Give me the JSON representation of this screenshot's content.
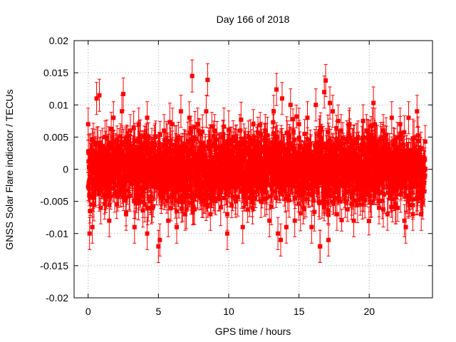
{
  "chart_data": {
    "type": "scatter",
    "title": "Day 166 of 2018",
    "xlabel": "GPS time / hours",
    "ylabel": "GNSS Solar Flare indicator / TECUs",
    "xlim": [
      -1,
      24.5
    ],
    "ylim": [
      -0.02,
      0.02
    ],
    "xticks": [
      0,
      5,
      10,
      15,
      20
    ],
    "xtick_labels": [
      "0",
      "5",
      "10",
      "15",
      "20"
    ],
    "yticks": [
      -0.02,
      -0.015,
      -0.01,
      -0.005,
      0,
      0.005,
      0.01,
      0.015,
      0.02
    ],
    "ytick_labels": [
      "-0.02",
      "-0.015",
      "-0.01",
      "-0.005",
      "0",
      "0.005",
      "0.01",
      "0.015",
      "0.02"
    ],
    "grid": true,
    "series_color": "#ff0000",
    "series": [
      {
        "name": "solar flare indicator",
        "x": [
          0.0,
          0.3,
          0.6,
          0.9,
          1.2,
          1.5,
          1.8,
          2.1,
          2.4,
          2.7,
          3.0,
          3.3,
          3.6,
          3.9,
          4.2,
          4.5,
          4.8,
          5.1,
          5.4,
          5.7,
          6.0,
          6.3,
          6.6,
          6.9,
          7.2,
          7.5,
          7.8,
          8.1,
          8.4,
          8.7,
          9.0,
          9.3,
          9.6,
          9.9,
          10.2,
          10.5,
          10.8,
          11.1,
          11.4,
          11.7,
          12.0,
          12.3,
          12.6,
          12.9,
          13.2,
          13.5,
          13.8,
          14.1,
          14.4,
          14.7,
          15.0,
          15.3,
          15.6,
          15.9,
          16.2,
          16.5,
          16.8,
          17.1,
          17.4,
          17.7,
          18.0,
          18.3,
          18.6,
          18.9,
          19.2,
          19.5,
          19.8,
          20.1,
          20.4,
          20.7,
          21.0,
          21.3,
          21.6,
          21.9,
          22.2,
          22.5,
          22.8,
          23.1,
          23.4,
          23.7,
          0.8,
          2.5,
          7.4,
          8.5,
          13.4,
          16.9,
          17.2,
          20.3,
          5.0,
          9.9,
          13.7,
          16.5,
          0.1,
          4.2,
          11.0,
          22.6
        ],
        "y": [
          0.007,
          -0.009,
          0.011,
          -0.006,
          0.005,
          -0.008,
          0.008,
          -0.004,
          0.009,
          -0.007,
          0.006,
          -0.009,
          0.007,
          -0.005,
          0.008,
          -0.006,
          0.005,
          -0.011,
          0.006,
          -0.008,
          0.007,
          -0.009,
          0.009,
          -0.007,
          0.008,
          -0.006,
          0.007,
          -0.005,
          0.009,
          -0.007,
          0.006,
          -0.004,
          0.005,
          -0.007,
          0.004,
          -0.005,
          0.006,
          -0.004,
          0.005,
          -0.006,
          0.004,
          -0.005,
          0.006,
          -0.008,
          0.009,
          -0.01,
          0.011,
          -0.009,
          0.01,
          -0.008,
          0.007,
          -0.006,
          0.008,
          -0.009,
          0.01,
          -0.012,
          0.012,
          -0.011,
          0.009,
          -0.007,
          0.006,
          -0.005,
          0.007,
          -0.008,
          0.005,
          -0.004,
          0.006,
          -0.005,
          0.007,
          -0.006,
          0.006,
          -0.007,
          0.008,
          -0.006,
          0.007,
          -0.008,
          0.008,
          -0.007,
          0.009,
          -0.007,
          0.0115,
          0.0117,
          0.0145,
          0.0139,
          0.0124,
          0.0138,
          0.0103,
          0.0103,
          -0.012,
          -0.01,
          -0.011,
          -0.012,
          -0.01,
          -0.01,
          -0.009,
          -0.009
        ],
        "err": 0.0025
      }
    ],
    "dense_band": {
      "count": 2400,
      "x_range": [
        0,
        24
      ],
      "y_extent": 0.0065
    }
  }
}
